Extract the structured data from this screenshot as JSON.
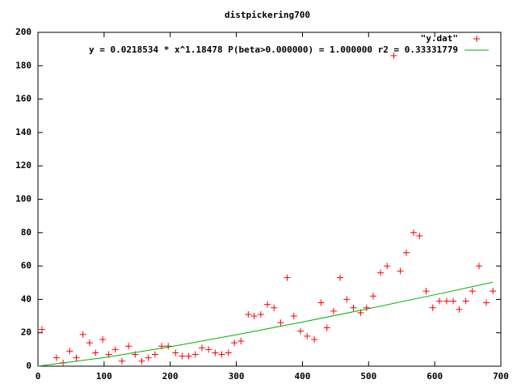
{
  "chart_data": {
    "type": "scatter",
    "title": "distpickering700",
    "xlim": [
      0,
      700
    ],
    "xticks": [
      0,
      100,
      200,
      300,
      400,
      500,
      600,
      700
    ],
    "ylim": [
      0,
      200
    ],
    "yticks": [
      0,
      20,
      40,
      60,
      80,
      100,
      120,
      140,
      160,
      180,
      200
    ],
    "legend": "top-right",
    "series": [
      {
        "name": "\"y.dat\"",
        "color": "#ff0000",
        "mark": "plus",
        "x": [
          6,
          28,
          38,
          48,
          58,
          68,
          78,
          87,
          98,
          107,
          117,
          127,
          137,
          147,
          157,
          167,
          177,
          187,
          197,
          208,
          218,
          228,
          238,
          248,
          258,
          268,
          278,
          288,
          297,
          307,
          318,
          327,
          337,
          347,
          357,
          367,
          377,
          387,
          397,
          407,
          418,
          428,
          437,
          447,
          457,
          467,
          477,
          488,
          497,
          507,
          518,
          528,
          538,
          548,
          557,
          568,
          577,
          587,
          597,
          607,
          618,
          628,
          637,
          647,
          657,
          667,
          678,
          688
        ],
        "values": [
          22,
          5,
          2,
          9,
          5,
          19,
          14,
          8,
          16,
          7,
          10,
          3,
          12,
          7,
          3,
          5,
          7,
          12,
          12,
          8,
          6,
          6,
          7,
          11,
          10,
          8,
          7,
          8,
          14,
          15,
          31,
          30,
          31,
          37,
          35,
          26,
          53,
          30,
          21,
          18,
          16,
          38,
          23,
          33,
          53,
          40,
          35,
          32,
          35,
          42,
          56,
          60,
          186,
          57,
          68,
          80,
          78,
          45,
          35,
          39,
          39,
          39,
          34,
          39,
          45,
          60,
          38,
          45
        ]
      },
      {
        "name": "y = 0.0218534 * x^1.18478 P(beta>0.000000) = 1.000000 r2 = 0.33331779",
        "color": "#00b000",
        "mark": "line",
        "x": [
          0,
          100,
          200,
          300,
          400,
          500,
          600,
          688
        ],
        "values": [
          0,
          5.12,
          11.63,
          18.81,
          26.45,
          34.46,
          42.77,
          50.29
        ]
      }
    ]
  }
}
